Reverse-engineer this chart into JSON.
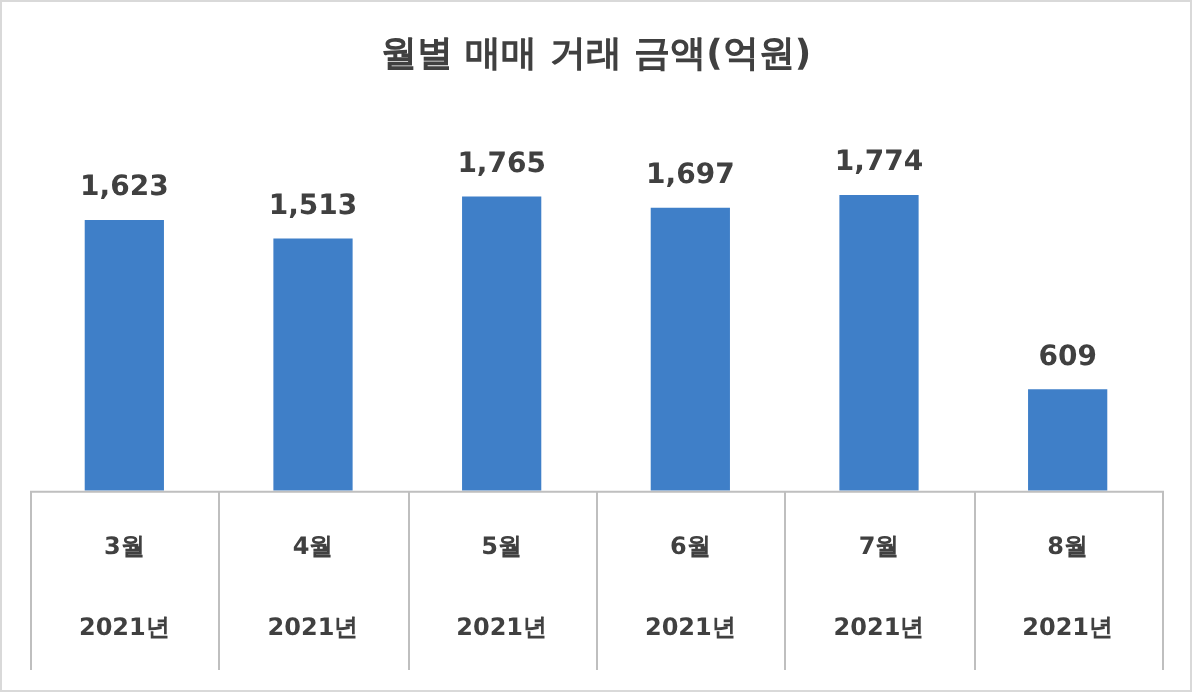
{
  "chart_data": {
    "type": "bar",
    "title": "월별 매매 거래 금액(억원)",
    "categories": [
      "3월\n2021년",
      "4월\n2021년",
      "5월\n2021년",
      "6월\n2021년",
      "7월\n2021년",
      "8월\n2021년"
    ],
    "values": [
      1623,
      1513,
      1765,
      1697,
      1774,
      609
    ],
    "value_labels": [
      "1,623",
      "1,513",
      "1,765",
      "1,697",
      "1,774",
      "609"
    ],
    "color": "#3f7fc8",
    "legend": false
  }
}
